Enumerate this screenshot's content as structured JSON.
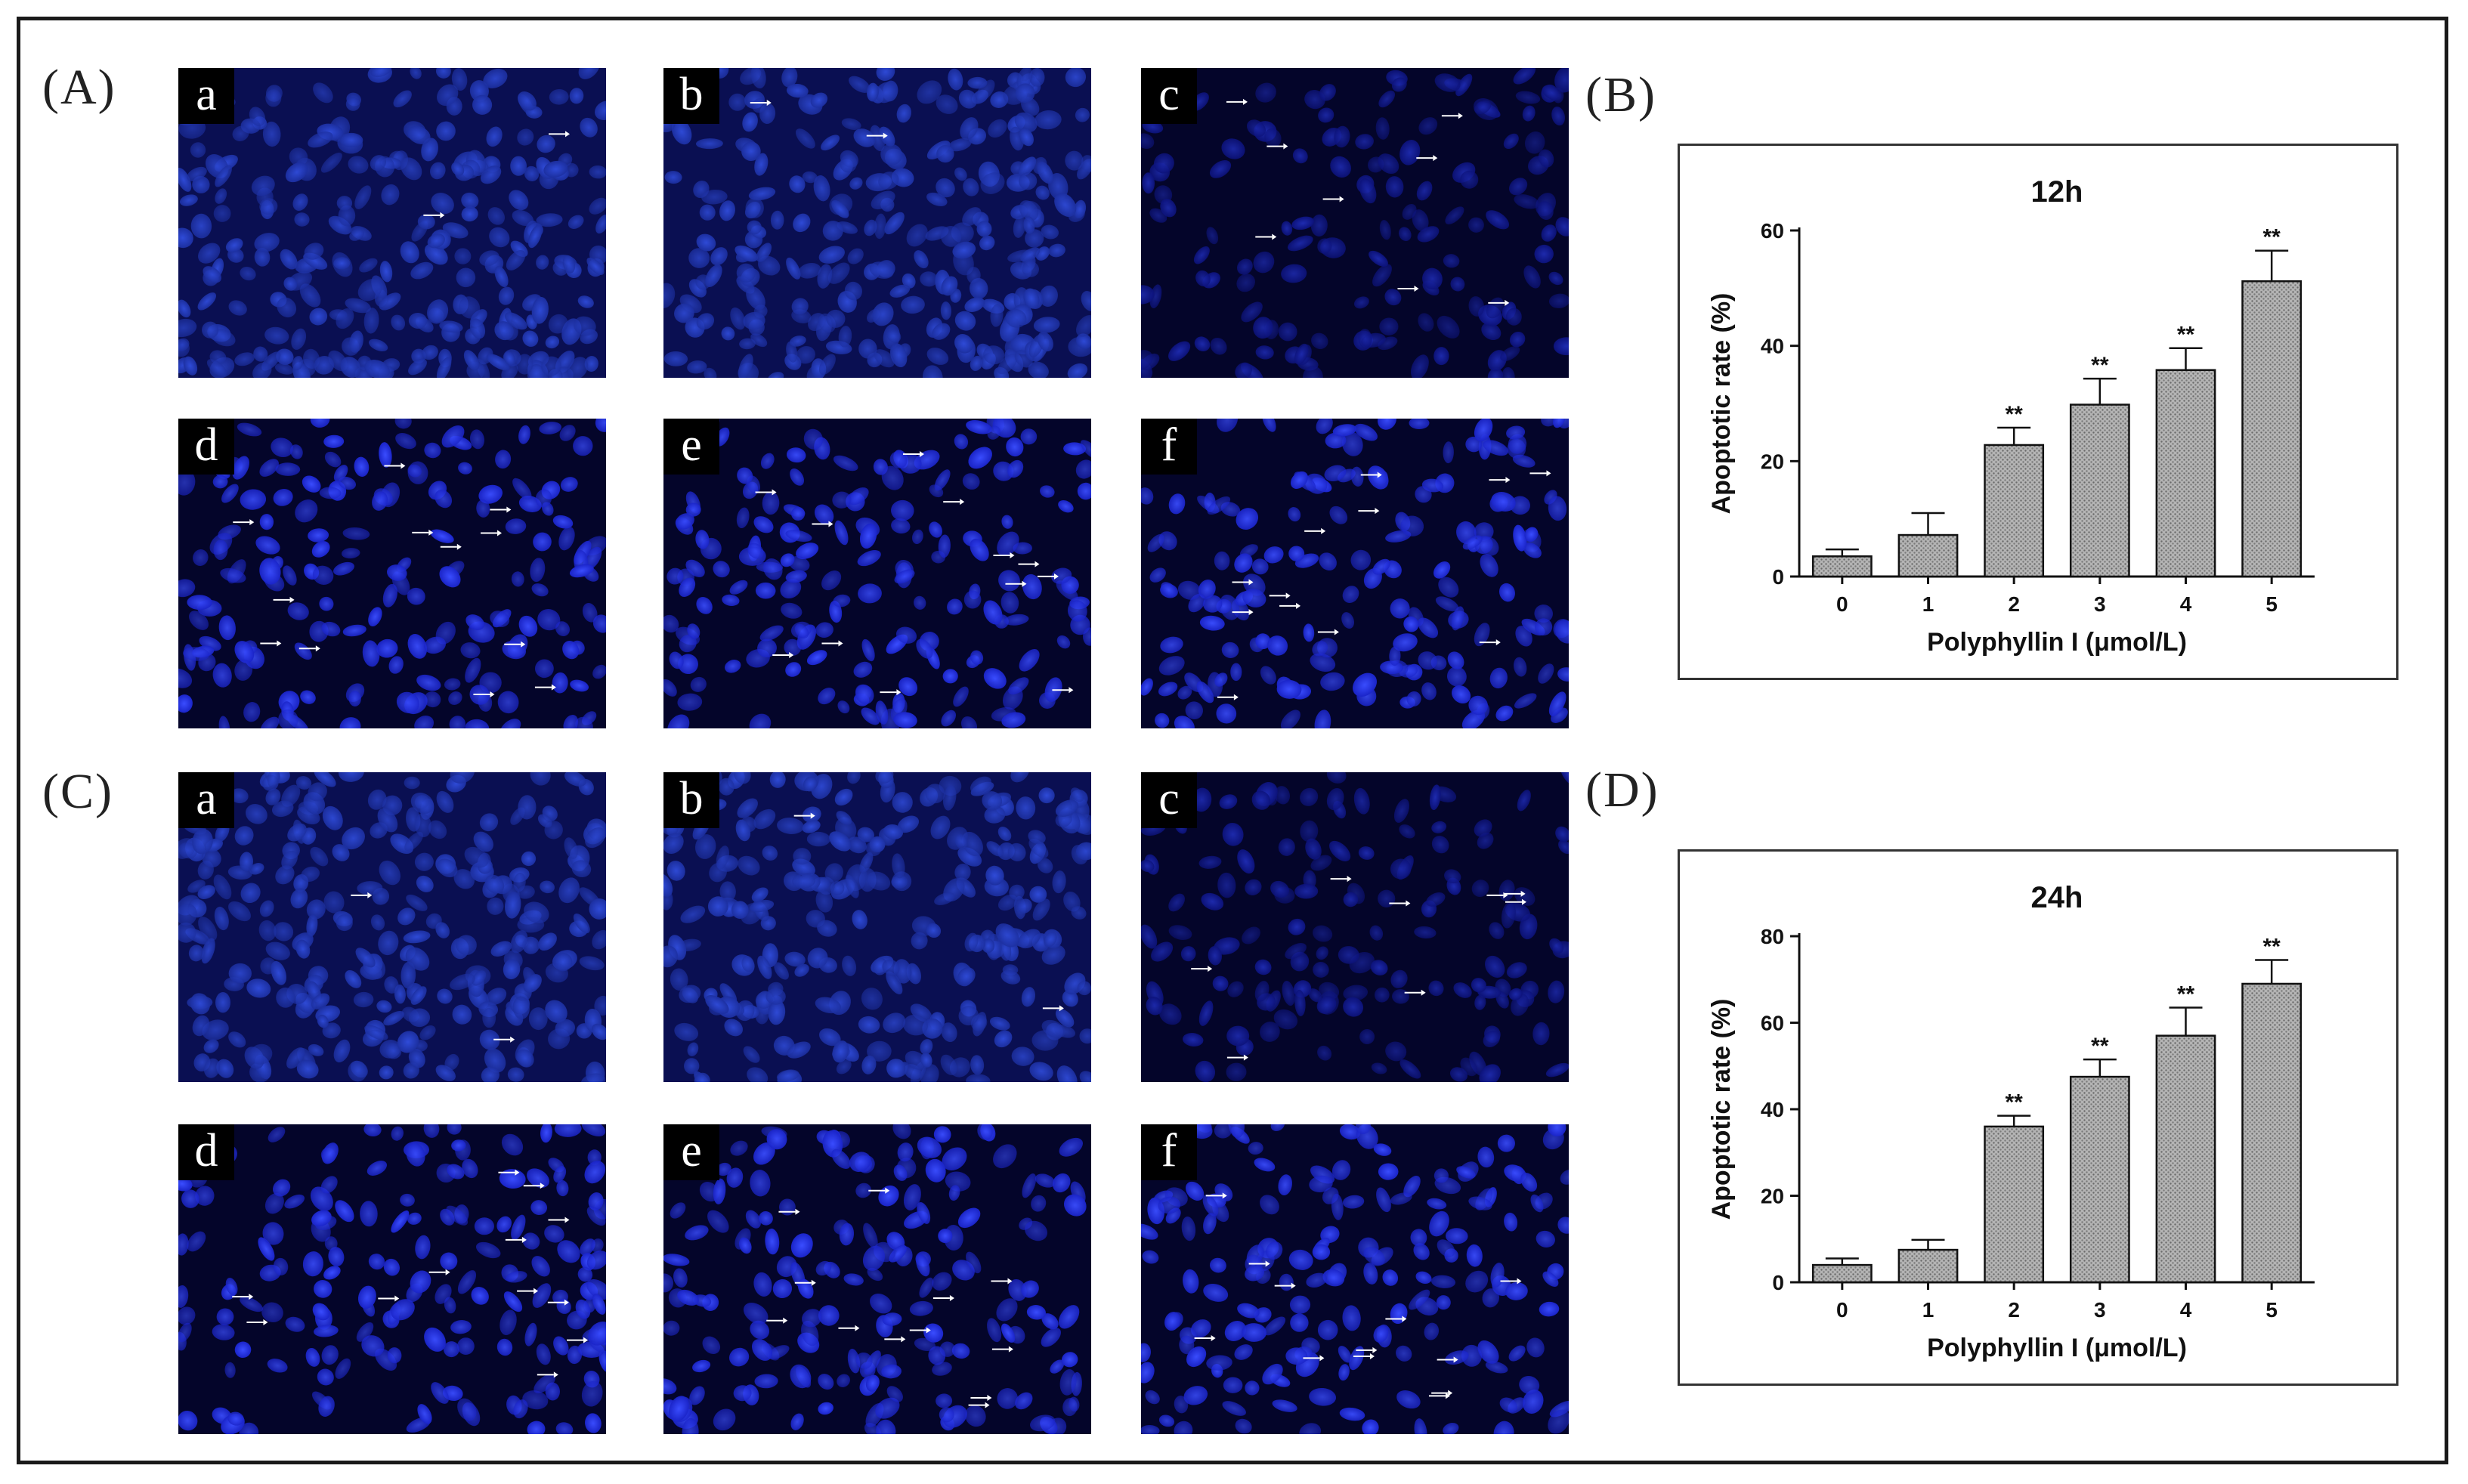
{
  "figure": {
    "panels": {
      "A": "(A)",
      "B": "(B)",
      "C": "(C)",
      "D": "(D)"
    },
    "micro_sublabels": [
      "a",
      "b",
      "c",
      "d",
      "e",
      "f"
    ],
    "colors": {
      "nucleus": "#2a3cff",
      "background": "#030318",
      "arrow": "#ffffff",
      "bar_fill": "#a8a8a8"
    }
  },
  "chart_data": [
    {
      "type": "bar",
      "title": "12h",
      "xlabel": "Polyphyllin I (μmol/L)",
      "ylabel": "Apoptotic rate (%)",
      "categories": [
        "0",
        "1",
        "2",
        "3",
        "4",
        "5"
      ],
      "values": [
        3.5,
        7.2,
        22.8,
        29.8,
        35.8,
        51.2
      ],
      "errors": [
        1.2,
        3.8,
        3.0,
        4.5,
        3.8,
        5.3
      ],
      "significance": [
        "",
        "",
        "**",
        "**",
        "**",
        "**"
      ],
      "ylim": [
        0,
        60
      ],
      "yticks": [
        0,
        20,
        40,
        60
      ]
    },
    {
      "type": "bar",
      "title": "24h",
      "xlabel": "Polyphyllin I (μmol/L)",
      "ylabel": "Apoptotic rate (%)",
      "categories": [
        "0",
        "1",
        "2",
        "3",
        "4",
        "5"
      ],
      "values": [
        4.0,
        7.5,
        36.0,
        47.5,
        57.0,
        69.0
      ],
      "errors": [
        1.5,
        2.3,
        2.5,
        4.0,
        6.5,
        5.5
      ],
      "significance": [
        "",
        "",
        "**",
        "**",
        "**",
        "**"
      ],
      "ylim": [
        0,
        80
      ],
      "yticks": [
        0,
        20,
        40,
        60,
        80
      ]
    }
  ]
}
